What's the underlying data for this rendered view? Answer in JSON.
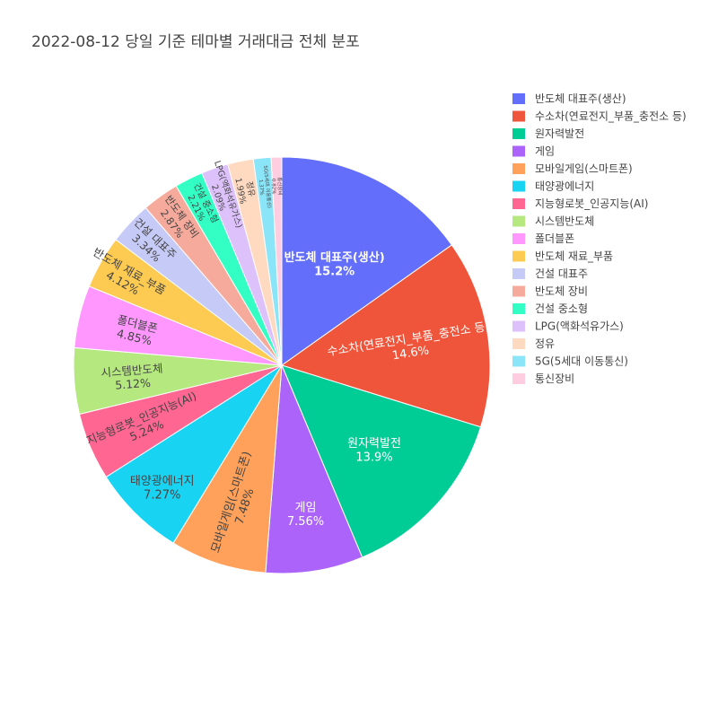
{
  "chart_data": {
    "type": "pie",
    "title": "2022-08-12 당일 기준 테마별 거래대금 전체 분포",
    "legend_position": "right",
    "slices": [
      {
        "label": "반도체 대표주(생산)",
        "value": 15.2,
        "pct_label": "15.2%",
        "color": "#636efa"
      },
      {
        "label": "수소차(연료전지_부품_충전소 등)",
        "value": 14.6,
        "pct_label": "14.6%",
        "color": "#ef553b"
      },
      {
        "label": "원자력발전",
        "value": 13.9,
        "pct_label": "13.9%",
        "color": "#00cc96"
      },
      {
        "label": "게임",
        "value": 7.56,
        "pct_label": "7.56%",
        "color": "#ab63fa"
      },
      {
        "label": "모바일게임(스마트폰)",
        "value": 7.48,
        "pct_label": "7.48%",
        "color": "#ffa15a"
      },
      {
        "label": "태양광에너지",
        "value": 7.27,
        "pct_label": "7.27%",
        "color": "#19d3f3"
      },
      {
        "label": "지능형로봇_인공지능(AI)",
        "value": 5.24,
        "pct_label": "5.24%",
        "color": "#ff6692"
      },
      {
        "label": "시스템반도체",
        "value": 5.12,
        "pct_label": "5.12%",
        "color": "#b6e880"
      },
      {
        "label": "폴더블폰",
        "value": 4.85,
        "pct_label": "4.85%",
        "color": "#ff97ff"
      },
      {
        "label": "반도체 재료_부품",
        "value": 4.12,
        "pct_label": "4.12%",
        "color": "#fecb52"
      },
      {
        "label": "건설 대표주",
        "value": 3.34,
        "pct_label": "3.34%",
        "color": "#c6caf6"
      },
      {
        "label": "반도체 장비",
        "value": 2.87,
        "pct_label": "2.87%",
        "color": "#f6aa9b"
      },
      {
        "label": "건설 중소형",
        "value": 2.21,
        "pct_label": "2.21%",
        "color": "#33ffc4"
      },
      {
        "label": "LPG(액화석유가스)",
        "value": 2.09,
        "pct_label": "2.09%",
        "color": "#ddc1fb"
      },
      {
        "label": "정유",
        "value": 1.99,
        "pct_label": "1.99%",
        "color": "#ffd9c0"
      },
      {
        "label": "5G(5세대 이동통신)",
        "value": 1.37,
        "pct_label": "1.37%",
        "color": "#8be5f8"
      },
      {
        "label": "통신장비",
        "value": 0.82,
        "pct_label": "0.82%",
        "color": "#ffcce0"
      }
    ]
  }
}
